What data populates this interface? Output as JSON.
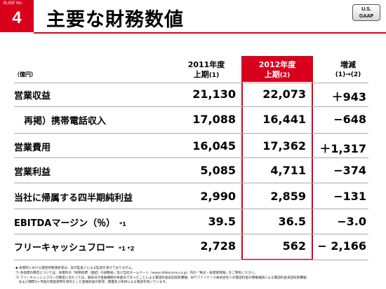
{
  "header": {
    "slide_label": "SLIDE No.",
    "slide_number": "4",
    "title": "主要な財務数値",
    "gaap_line1": "U.S.",
    "gaap_line2": "GAAP"
  },
  "table": {
    "unit": "（億円）",
    "columns": [
      {
        "line1": "2011年度",
        "line2": "上期",
        "note": "(1)"
      },
      {
        "line1": "2012年度",
        "line2": "上期",
        "note": "(2)"
      },
      {
        "line1": "増減",
        "line2": "(1)→(2)",
        "note": ""
      }
    ],
    "rows": [
      {
        "label": "営業収益",
        "mark": "",
        "v2011": "21,130",
        "v2012": "22,073",
        "diff": "＋943"
      },
      {
        "label": "再掲）携帯電話収入",
        "mark": "",
        "v2011": "17,088",
        "v2012": "16,441",
        "diff": "−648"
      },
      {
        "label": "営業費用",
        "mark": "",
        "v2011": "16,045",
        "v2012": "17,362",
        "diff": "＋1,317"
      },
      {
        "label": "営業利益",
        "mark": "",
        "v2011": "5,085",
        "v2012": "4,711",
        "diff": "−374"
      },
      {
        "label": "当社に帰属する四半期純利益",
        "mark": "",
        "v2011": "2,990",
        "v2012": "2,859",
        "diff": "−131"
      },
      {
        "label": "EBITDAマージン（％）",
        "mark": "*1",
        "v2011": "39.5",
        "v2012": "36.5",
        "diff": "−3.0"
      },
      {
        "label": "フリーキャッシュフロー",
        "mark": "*1 *2",
        "v2011": "2,728",
        "v2012": "562",
        "diff": "− 2,166"
      }
    ]
  },
  "footnotes": [
    "◆ 本資料における連結財務諸表等は、会計監査人による監査を受けておりません。",
    "*1 各指標の算定については、本資料の「財務指標（連結）の調整表」及び当社ホームページ（www.nttdocomo.co.jp）内の「株主・投資家情報」をご参照ください。",
    "*2 フリーキャッシュフローの算定にあたっては、期末日が金融機関の休業日であったことによる電話料金未回収影響額、NTTファイナンス株式会社への電話料金の債権譲渡による電話料金未回収影響額、",
    "　および期間3ヶ月超の資金運用を目的とした金融商品の取得、償還及び売却による増減を除いています。"
  ]
}
